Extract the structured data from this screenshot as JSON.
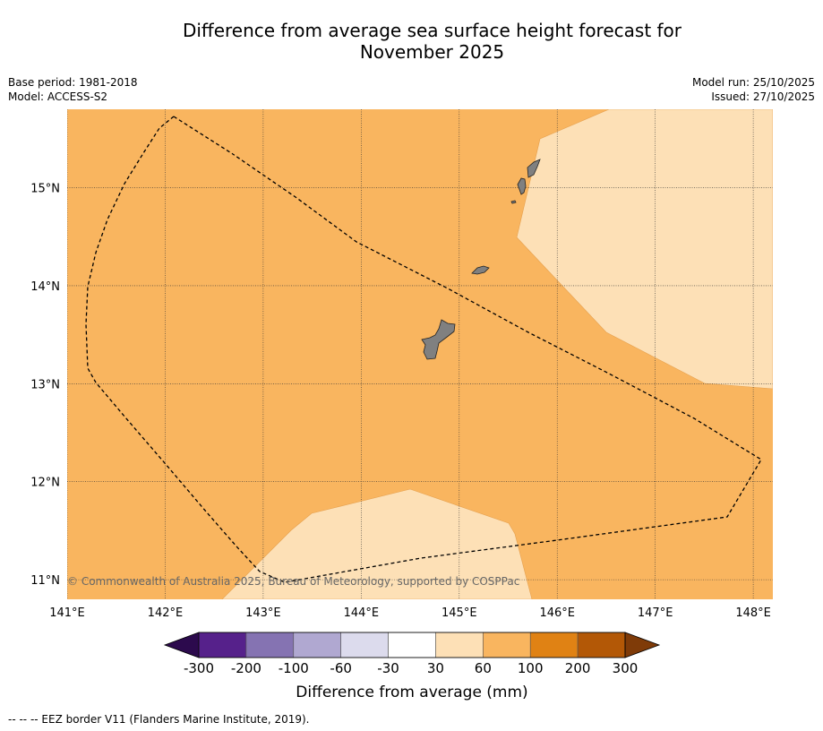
{
  "title": {
    "line1": "Difference from average sea surface height forecast for",
    "line2": "November 2025"
  },
  "info_left": {
    "base_period": "Base period: 1981-2018",
    "model": "Model: ACCESS-S2"
  },
  "info_right": {
    "model_run": "Model run: 25/10/2025",
    "issued": "Issued: 27/10/2025"
  },
  "map": {
    "lon_labels": [
      "141°E",
      "142°E",
      "143°E",
      "144°E",
      "145°E",
      "146°E",
      "147°E",
      "148°E"
    ],
    "lat_labels": [
      "15°N",
      "14°N",
      "13°N",
      "12°N",
      "11°N"
    ],
    "lon_range": [
      141,
      148.2
    ],
    "lat_range": [
      10.8,
      15.8
    ],
    "copyright": "© Commonwealth of Australia 2025, Bureau of Meteorology, supported by COSPPac",
    "background_category": "60 to 100 mm",
    "colors": {
      "ocean_60_100": "#f9b55f",
      "ocean_30_60": "#fde0b6",
      "land": "#808080",
      "grid": "#333333"
    }
  },
  "colorbar": {
    "tick_labels": [
      "-300",
      "-200",
      "-100",
      "-60",
      "-30",
      "30",
      "60",
      "100",
      "200",
      "300"
    ],
    "colors": [
      "#2c0a4d",
      "#56218b",
      "#8573b2",
      "#b0a8d1",
      "#dcdbed",
      "#ffffff",
      "#fde0b6",
      "#f9b55f",
      "#e08214",
      "#b35806",
      "#7f3b08"
    ],
    "label": "Difference from average (mm)"
  },
  "footer": "--  --  -- EEZ border V11 (Flanders Marine Institute, 2019)."
}
